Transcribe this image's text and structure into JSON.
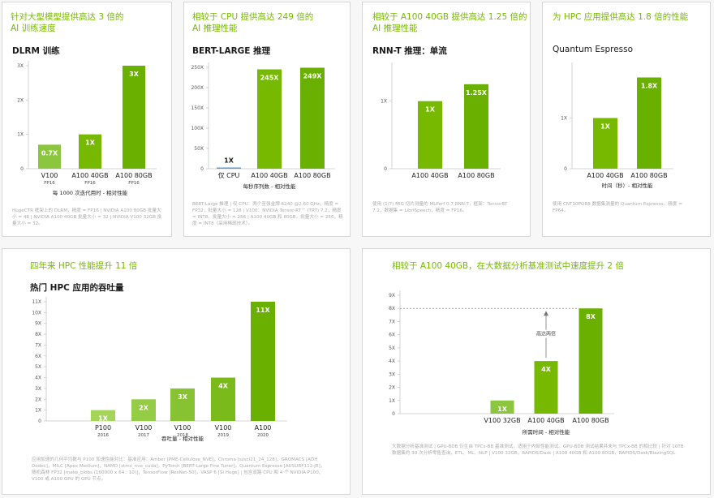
{
  "colors": {
    "accent": "#76b900",
    "bar_light": "#8cc63f",
    "bar_mid": "#76b900",
    "bar_dark": "#69b000",
    "bar_blue": "#5b9bd5",
    "axis": "#c8c8c8",
    "note": "#aaaaaa"
  },
  "cards": [
    {
      "title": "针对大型模型提供高达 3 倍的\nAI 训练速度",
      "subtitle": "DLRM 训练",
      "note": "HugeCTR 框架上的 DLRM，精度 = FP16 | NVIDIA A100 80GB 批量大小 = 48 | NVIDIA A100 40GB 批量大小 = 32 | NVIDIA V100 32GB 批量大小 = 32。"
    },
    {
      "title": "相较于 CPU 提供高达 249 倍的\nAI 推理性能",
      "subtitle": "BERT-LARGE 推理",
      "note": "BERT-Large 推理 | 仅 CPU：两个至强金牌 6240 @2.60 GHz，精度 = FP32，批量大小 = 128 | V100：NVIDIA Tensor-RT™ (TRT) 7.2，精度 = INT8，批量大小 = 256 | A100 40GB 和 80GB，批量大小 = 256，精度 = INT8（采用稀疏技术）。"
    },
    {
      "title": "相较于 A100 40GB 提供高达 1.25 倍的\nAI 推理性能",
      "subtitle": "RNN-T 推理：单流",
      "note": "使用 (1/7) MIG 切片测量的 MLPerf 0.7 RNN-T，框架：TensorRT 7.2，数据集 = LibriSpeech，精度 = FP16。"
    },
    {
      "title": "为 HPC 应用提供高达 1.8 倍的性能",
      "subtitle": "Quantum Espresso",
      "note": "使用 CNT10POR8 数据集测量的 Quantum Espresso，精度 = FP64。"
    },
    {
      "title": "四年来 HPC 性能提升 11 倍",
      "subtitle": "热门 HPC 应用的吞吐量",
      "note": "应用加速的几何平均数与 P100 加速性能对比：基准应用：Amber [PME-Cellulose_NVE]，Chroma [szscl21_24_128]，GROMACS [ADH Dodec]，MILC [Apex Medium]，NAMD [stmv_nve_cuda]，PyTorch [BERT-Large Fine Tuner]，Quantum Espresso [AUSURF112-jR]，随机森林 FP32 [make_blobs (160000 x 64 : 10)]，TensorFlow [ResNet-50]，VASP 6 [Si Huge] | 包含双路 CPU 和 4 个 NVIDIA P100、V100 或 A100 GPU 的 GPU 节点。"
    },
    {
      "title": "相较于 A100 40GB，在大数据分析基准测试中速度提升 2 倍",
      "subtitle": "",
      "note": "大数据分析基准测试 | GPU-BDB 衍生自 TPCx-BB 基准测试，适用于内部性能测试。GPU-BDB 测试结果并未与 TPCx-BB 的相比较 | 针对 10TB 数据集的 30 次分析零售查询，ETL、ML、NLP | V100 32GB，RAPIDS/Dask | A100 40GB 和 A100 80GB，RAPIDS/Dask/BlazingSQL"
    }
  ],
  "chart_data": [
    {
      "type": "bar",
      "categories": [
        "V100",
        "A100 40GB",
        "A100 80GB"
      ],
      "category_sub": [
        "FP16",
        "FP16",
        "FP16"
      ],
      "values": [
        0.7,
        1,
        3
      ],
      "value_labels": [
        "0.7X",
        "1X",
        "3X"
      ],
      "yticks": [
        "0",
        "1X",
        "2X",
        "3X"
      ],
      "ylim": [
        0,
        3
      ],
      "xlabel": "每 1000 次迭代用时 - 相对性能",
      "bar_colors": [
        "#8cc63f",
        "#76b900",
        "#69b000"
      ]
    },
    {
      "type": "bar",
      "categories": [
        "仅 CPU",
        "A100 40GB",
        "A100 80GB"
      ],
      "category_sub": [
        "",
        "",
        ""
      ],
      "values": [
        1,
        245,
        249
      ],
      "value_labels": [
        "1X",
        "245X",
        "249X"
      ],
      "yticks": [
        "0",
        "50X",
        "100X",
        "150X",
        "200X",
        "250X"
      ],
      "ylim": [
        0,
        250
      ],
      "xlabel": "每秒序列数 - 相对性能",
      "bar_colors": [
        "#5b9bd5",
        "#76b900",
        "#69b000"
      ]
    },
    {
      "type": "bar",
      "categories": [
        "A100 40GB",
        "A100 80GB"
      ],
      "category_sub": [
        "",
        ""
      ],
      "values": [
        1,
        1.25
      ],
      "value_labels": [
        "1X",
        "1.25X"
      ],
      "yticks": [
        "0",
        "1X"
      ],
      "ylim": [
        0,
        1.5
      ],
      "xlabel": "",
      "bar_colors": [
        "#76b900",
        "#69b000"
      ]
    },
    {
      "type": "bar",
      "categories": [
        "A100 40GB",
        "A100 80GB"
      ],
      "category_sub": [
        "",
        ""
      ],
      "values": [
        1,
        1.8
      ],
      "value_labels": [
        "1X",
        "1.8X"
      ],
      "yticks": [
        "0",
        "1X"
      ],
      "ylim": [
        0,
        2
      ],
      "xlabel": "时间（秒）- 相对性能",
      "bar_colors": [
        "#76b900",
        "#69b000"
      ]
    },
    {
      "type": "bar",
      "categories": [
        "P100",
        "V100",
        "V100",
        "V100",
        "A100"
      ],
      "category_sub": [
        "2016",
        "2017",
        "2018",
        "2019",
        "2020"
      ],
      "values": [
        1,
        2,
        3,
        4,
        11
      ],
      "value_labels": [
        "1X",
        "2X",
        "3X",
        "4X",
        "11X"
      ],
      "yticks": [
        "0",
        "1X",
        "2X",
        "3X",
        "4X",
        "5X",
        "6X",
        "7X",
        "8X",
        "9X",
        "10X",
        "11X"
      ],
      "ylim": [
        0,
        11
      ],
      "xlabel": "吞吐量 - 相对性能",
      "bar_colors": [
        "#a5d45a",
        "#95cc45",
        "#86c232",
        "#7aba1a",
        "#69b000"
      ]
    },
    {
      "type": "bar",
      "categories": [
        "V100 32GB",
        "A100 40GB",
        "A100 80GB"
      ],
      "category_sub": [
        "",
        "",
        ""
      ],
      "values": [
        1,
        4,
        8
      ],
      "value_labels": [
        "1X",
        "4X",
        "8X"
      ],
      "yticks": [
        "0",
        "1X",
        "2X",
        "3X",
        "4X",
        "5X",
        "6X",
        "7X",
        "8X",
        "9X"
      ],
      "ylim": [
        0,
        9
      ],
      "xlabel": "所需时间 - 相对性能",
      "annotation": "高达两倍",
      "bar_colors": [
        "#8cc63f",
        "#76b900",
        "#69b000"
      ]
    }
  ]
}
